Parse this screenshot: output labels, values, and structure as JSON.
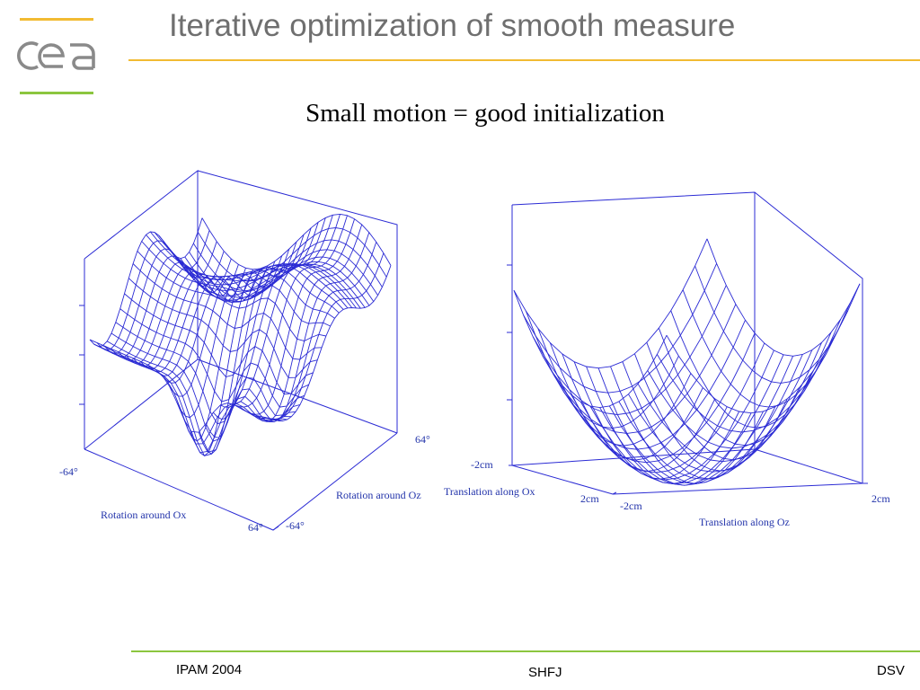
{
  "slide": {
    "title": "Iterative optimization of smooth measure",
    "subtitle": "Small motion = good initialization"
  },
  "logo": {
    "text": "cea",
    "colors": {
      "top_bar": "#f2bb32",
      "bottom_bar": "#8cc63f",
      "letters": "#8a8a8a"
    }
  },
  "figures": {
    "rotation_plot": {
      "axis_labels": {
        "ox": "Rotation around Ox",
        "oz": "Rotation around Oz"
      },
      "ticks": {
        "ox_min": "-64°",
        "ox_max": "64°",
        "oz_min": "-64°",
        "oz_max": "64°"
      }
    },
    "translation_plot": {
      "axis_labels": {
        "ox": "Translation along Ox",
        "oz": "Translation along Oz"
      },
      "ticks": {
        "ox_min": "-2cm",
        "ox_max": "2cm",
        "oz_min": "-2cm",
        "oz_max": "2cm"
      }
    },
    "mesh_color": "#2b2bd4"
  },
  "footer": {
    "left": "IPAM 2004",
    "center": "SHFJ",
    "right": "DSV"
  }
}
